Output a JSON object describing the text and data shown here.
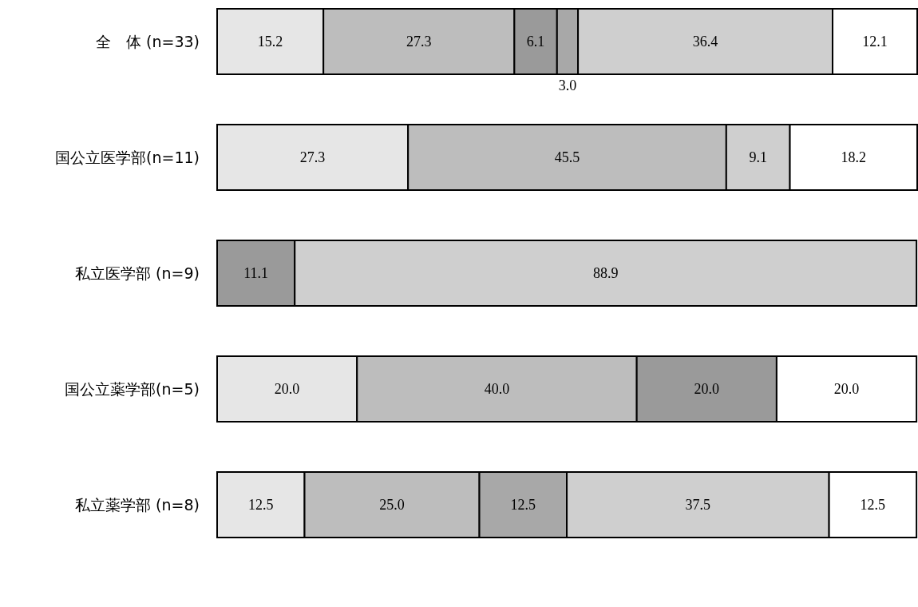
{
  "chart_data": {
    "type": "bar",
    "orientation": "horizontal",
    "stacked": true,
    "categories": [
      "全　体 (n=33)",
      "国公立医学部(n=11)",
      "私立医学部 (n=9)",
      "国公立薬学部(n=5)",
      "私立薬学部 (n=8)"
    ],
    "series": [
      {
        "color": "#e6e6e6",
        "values": [
          15.2,
          27.3,
          null,
          20.0,
          12.5
        ],
        "value_labels": [
          "15.2",
          "27.3",
          null,
          "20.0",
          "12.5"
        ]
      },
      {
        "color": "#bdbdbd",
        "values": [
          27.3,
          45.5,
          null,
          40.0,
          25.0
        ],
        "value_labels": [
          "27.3",
          "45.5",
          null,
          "40.0",
          "25.0"
        ]
      },
      {
        "color": "#9a9a9a",
        "values": [
          6.1,
          null,
          11.1,
          20.0,
          null
        ],
        "value_labels": [
          "6.1",
          null,
          "11.1",
          "20.0",
          null
        ]
      },
      {
        "color": "#a8a8a8",
        "values": [
          3.0,
          null,
          null,
          null,
          12.5
        ],
        "value_labels": [
          "3.0",
          null,
          null,
          null,
          "12.5"
        ]
      },
      {
        "color": "#cfcfcf",
        "values": [
          36.4,
          9.1,
          88.9,
          null,
          37.5
        ],
        "value_labels": [
          "36.4",
          "9.1",
          "88.9",
          null,
          "37.5"
        ]
      },
      {
        "color": "#ffffff",
        "values": [
          12.1,
          18.2,
          null,
          20.0,
          12.5
        ],
        "value_labels": [
          "12.1",
          "18.2",
          null,
          "20.0",
          "12.5"
        ]
      }
    ]
  }
}
